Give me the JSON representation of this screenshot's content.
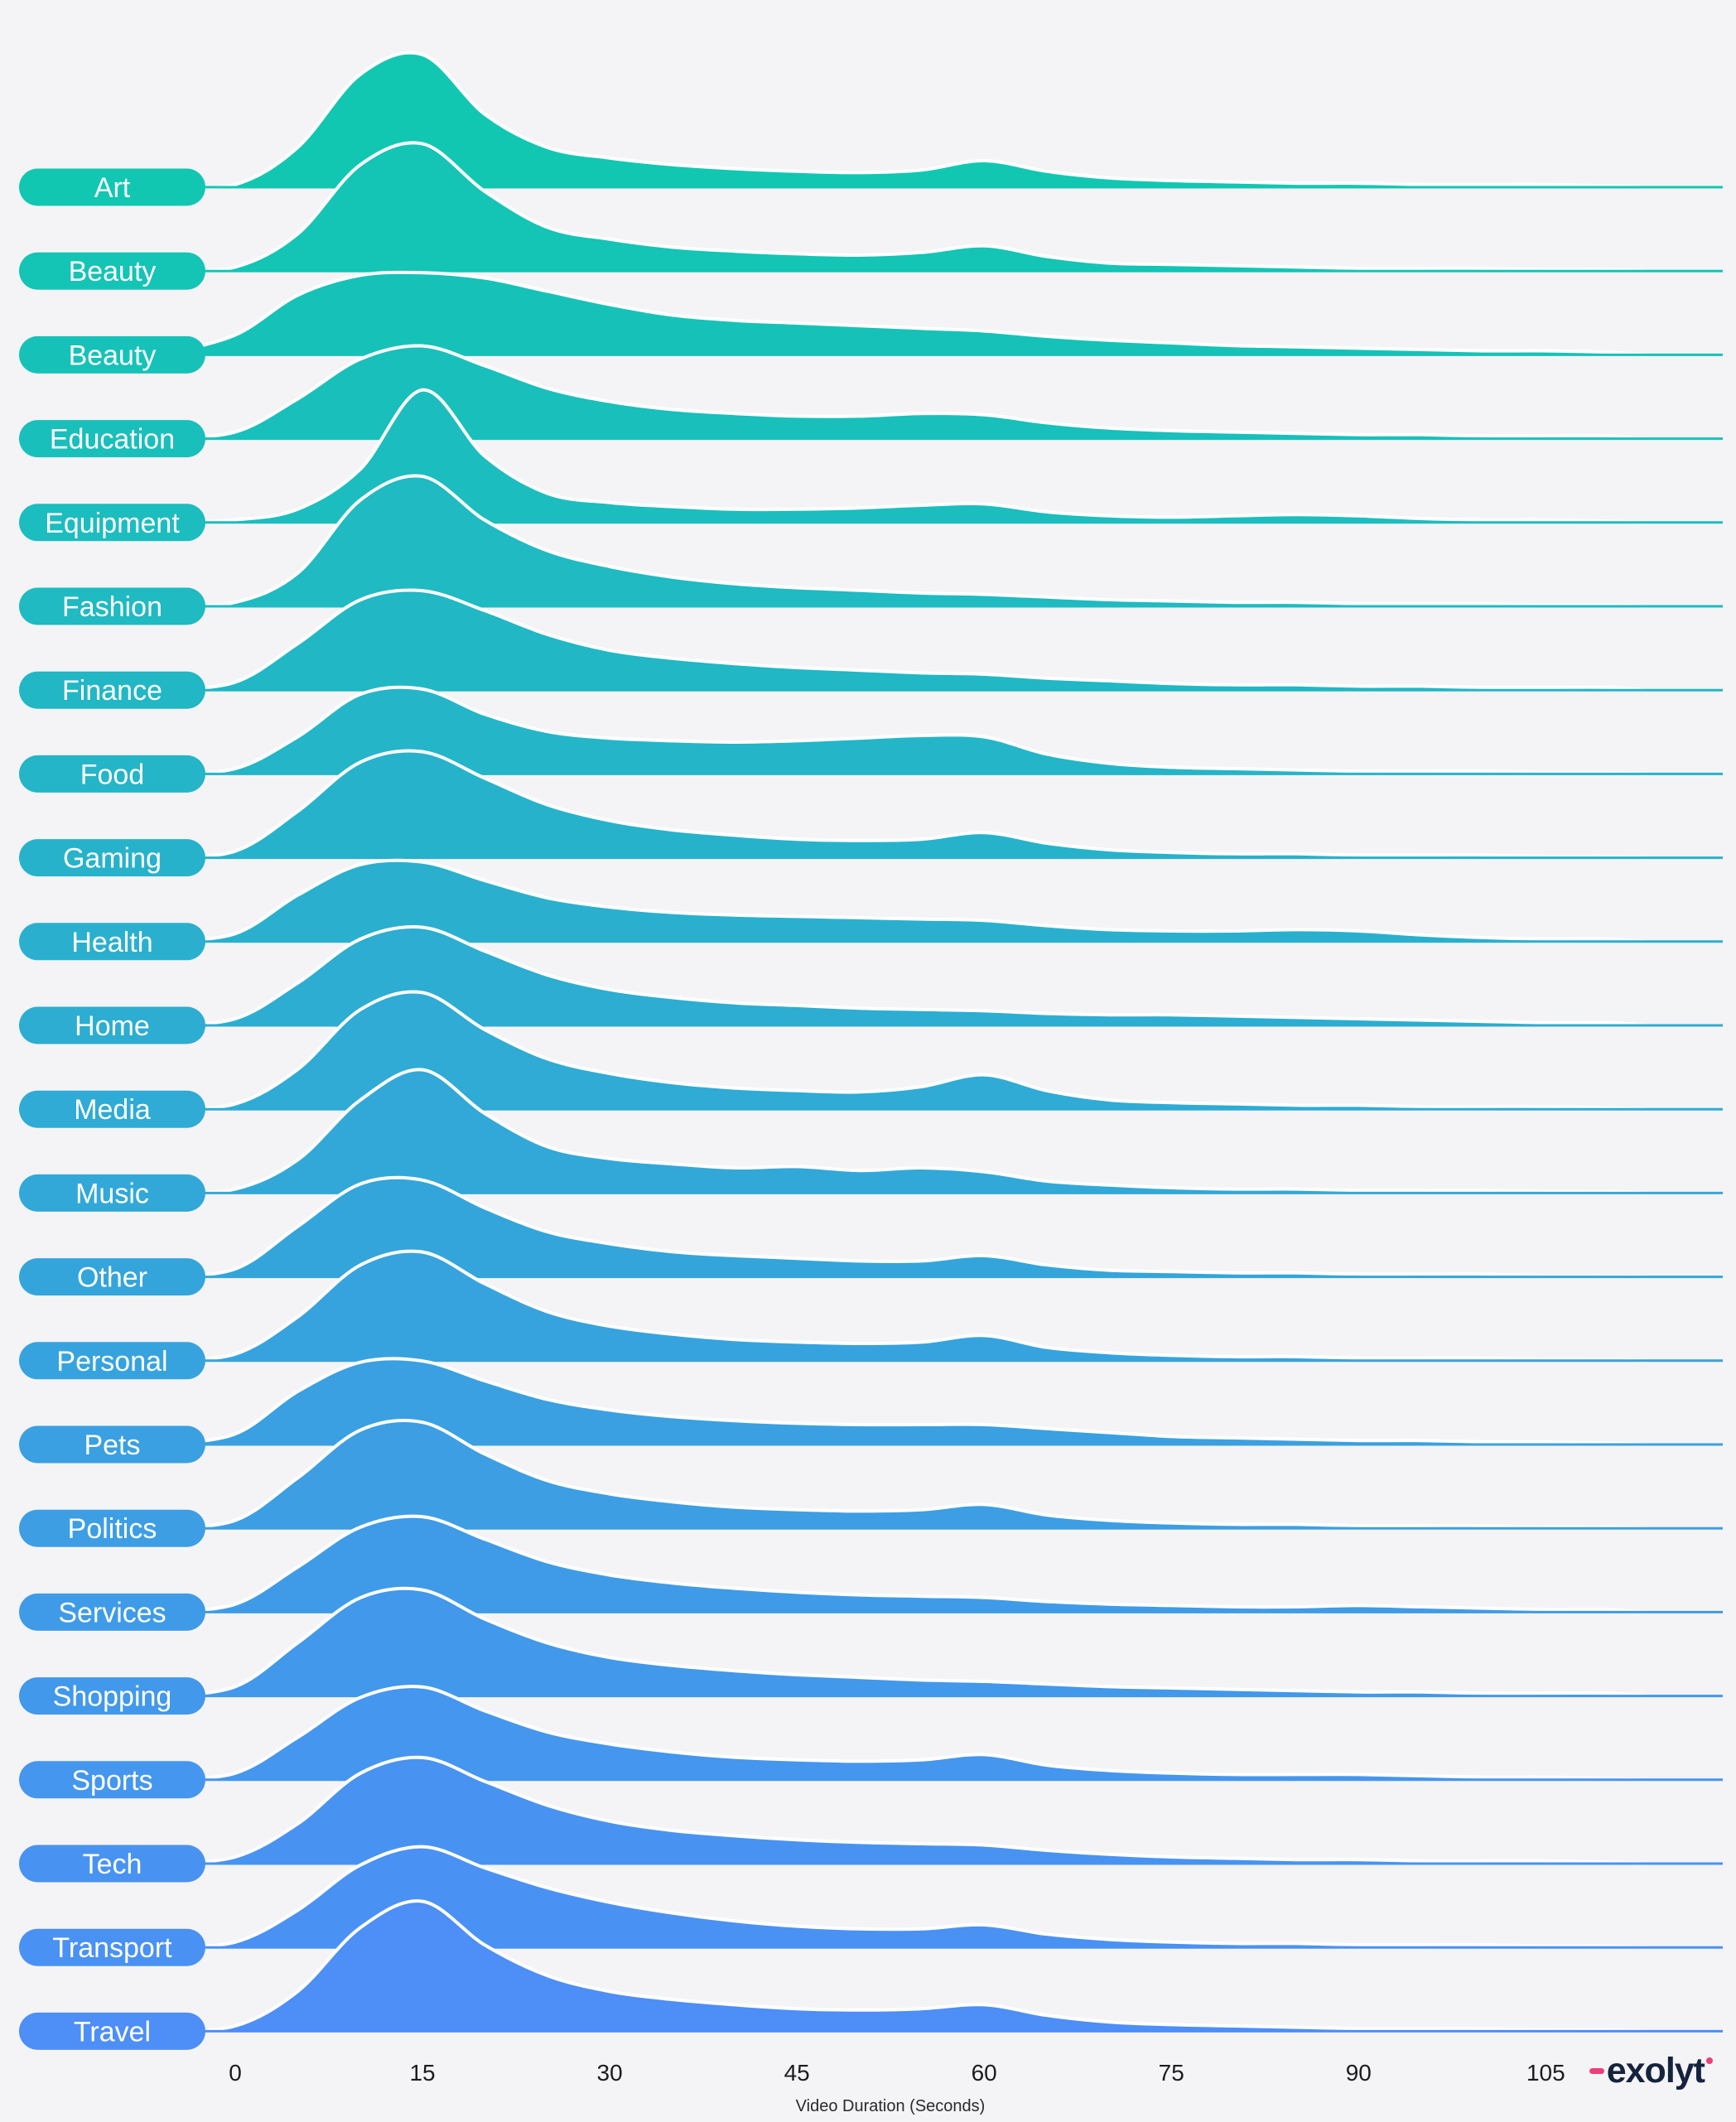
{
  "chart_data": {
    "type": "area",
    "variant": "ridgeline",
    "title": "",
    "xlabel": "Video Duration (Seconds)",
    "ylabel": "",
    "x_ticks": [
      0,
      15,
      30,
      45,
      60,
      75,
      90,
      105
    ],
    "x": [
      0,
      5,
      10,
      15,
      20,
      25,
      30,
      35,
      40,
      45,
      50,
      55,
      60,
      65,
      70,
      75,
      80,
      85,
      90,
      95,
      100,
      105,
      110
    ],
    "series": [
      {
        "label": "Art",
        "values": [
          0.02,
          0.3,
          0.85,
          1.0,
          0.55,
          0.3,
          0.22,
          0.17,
          0.14,
          0.12,
          0.11,
          0.13,
          0.2,
          0.12,
          0.07,
          0.05,
          0.04,
          0.03,
          0.03,
          0.02,
          0.02,
          0.02,
          0.01
        ]
      },
      {
        "label": "Beauty",
        "values": [
          0.03,
          0.28,
          0.8,
          0.96,
          0.6,
          0.33,
          0.24,
          0.18,
          0.15,
          0.13,
          0.12,
          0.14,
          0.19,
          0.11,
          0.06,
          0.05,
          0.04,
          0.03,
          0.02,
          0.02,
          0.02,
          0.01,
          0.01
        ]
      },
      {
        "label": "Beauty",
        "values": [
          0.15,
          0.45,
          0.6,
          0.62,
          0.58,
          0.48,
          0.38,
          0.3,
          0.26,
          0.24,
          0.22,
          0.2,
          0.18,
          0.14,
          0.11,
          0.09,
          0.07,
          0.06,
          0.05,
          0.04,
          0.03,
          0.03,
          0.02
        ]
      },
      {
        "label": "Education",
        "values": [
          0.05,
          0.3,
          0.6,
          0.7,
          0.55,
          0.38,
          0.28,
          0.22,
          0.19,
          0.17,
          0.17,
          0.19,
          0.18,
          0.12,
          0.08,
          0.06,
          0.05,
          0.04,
          0.03,
          0.03,
          0.02,
          0.02,
          0.02
        ]
      },
      {
        "label": "Equipment",
        "values": [
          0.02,
          0.1,
          0.4,
          1.0,
          0.5,
          0.22,
          0.15,
          0.12,
          0.1,
          0.1,
          0.11,
          0.13,
          0.14,
          0.08,
          0.05,
          0.04,
          0.05,
          0.06,
          0.05,
          0.03,
          0.02,
          0.02,
          0.01
        ]
      },
      {
        "label": "Fashion",
        "values": [
          0.03,
          0.25,
          0.8,
          0.98,
          0.65,
          0.42,
          0.3,
          0.22,
          0.17,
          0.14,
          0.12,
          0.1,
          0.09,
          0.07,
          0.05,
          0.04,
          0.03,
          0.03,
          0.02,
          0.02,
          0.02,
          0.01,
          0.01
        ]
      },
      {
        "label": "Finance",
        "values": [
          0.06,
          0.35,
          0.68,
          0.75,
          0.6,
          0.42,
          0.3,
          0.24,
          0.2,
          0.17,
          0.15,
          0.13,
          0.12,
          0.09,
          0.07,
          0.05,
          0.04,
          0.04,
          0.03,
          0.03,
          0.02,
          0.02,
          0.02
        ]
      },
      {
        "label": "Food",
        "values": [
          0.04,
          0.28,
          0.6,
          0.64,
          0.45,
          0.32,
          0.27,
          0.25,
          0.24,
          0.25,
          0.27,
          0.29,
          0.28,
          0.15,
          0.08,
          0.05,
          0.04,
          0.03,
          0.02,
          0.02,
          0.02,
          0.01,
          0.01
        ]
      },
      {
        "label": "Gaming",
        "values": [
          0.05,
          0.35,
          0.72,
          0.8,
          0.6,
          0.4,
          0.28,
          0.21,
          0.17,
          0.14,
          0.13,
          0.14,
          0.19,
          0.11,
          0.06,
          0.04,
          0.03,
          0.03,
          0.02,
          0.02,
          0.02,
          0.01,
          0.01
        ]
      },
      {
        "label": "Health",
        "values": [
          0.06,
          0.35,
          0.58,
          0.6,
          0.46,
          0.33,
          0.26,
          0.22,
          0.2,
          0.19,
          0.18,
          0.17,
          0.16,
          0.12,
          0.09,
          0.08,
          0.08,
          0.09,
          0.08,
          0.05,
          0.03,
          0.02,
          0.02
        ]
      },
      {
        "label": "Home",
        "values": [
          0.05,
          0.32,
          0.65,
          0.74,
          0.56,
          0.38,
          0.27,
          0.21,
          0.17,
          0.15,
          0.13,
          0.12,
          0.11,
          0.09,
          0.08,
          0.08,
          0.07,
          0.06,
          0.05,
          0.04,
          0.03,
          0.02,
          0.02
        ]
      },
      {
        "label": "Media",
        "values": [
          0.04,
          0.3,
          0.75,
          0.88,
          0.6,
          0.38,
          0.27,
          0.2,
          0.16,
          0.14,
          0.13,
          0.17,
          0.26,
          0.14,
          0.07,
          0.05,
          0.04,
          0.03,
          0.03,
          0.02,
          0.02,
          0.02,
          0.01
        ]
      },
      {
        "label": "Music",
        "values": [
          0.03,
          0.25,
          0.7,
          0.93,
          0.6,
          0.35,
          0.26,
          0.22,
          0.19,
          0.2,
          0.17,
          0.19,
          0.16,
          0.09,
          0.06,
          0.04,
          0.03,
          0.03,
          0.02,
          0.02,
          0.02,
          0.01,
          0.01
        ]
      },
      {
        "label": "Other",
        "values": [
          0.06,
          0.38,
          0.7,
          0.73,
          0.52,
          0.34,
          0.25,
          0.19,
          0.16,
          0.14,
          0.12,
          0.12,
          0.16,
          0.09,
          0.05,
          0.04,
          0.03,
          0.03,
          0.02,
          0.02,
          0.02,
          0.01,
          0.01
        ]
      },
      {
        "label": "Personal",
        "values": [
          0.05,
          0.33,
          0.72,
          0.82,
          0.58,
          0.37,
          0.26,
          0.2,
          0.16,
          0.14,
          0.13,
          0.14,
          0.19,
          0.1,
          0.06,
          0.04,
          0.03,
          0.03,
          0.02,
          0.02,
          0.02,
          0.01,
          0.01
        ]
      },
      {
        "label": "Pets",
        "values": [
          0.08,
          0.4,
          0.62,
          0.63,
          0.48,
          0.34,
          0.26,
          0.21,
          0.18,
          0.16,
          0.15,
          0.15,
          0.15,
          0.12,
          0.09,
          0.06,
          0.05,
          0.04,
          0.03,
          0.03,
          0.02,
          0.02,
          0.01
        ]
      },
      {
        "label": "Politics",
        "values": [
          0.06,
          0.38,
          0.74,
          0.8,
          0.56,
          0.36,
          0.26,
          0.2,
          0.16,
          0.14,
          0.13,
          0.14,
          0.18,
          0.1,
          0.06,
          0.04,
          0.03,
          0.03,
          0.02,
          0.02,
          0.02,
          0.01,
          0.01
        ]
      },
      {
        "label": "Services",
        "values": [
          0.06,
          0.34,
          0.64,
          0.72,
          0.55,
          0.38,
          0.28,
          0.22,
          0.18,
          0.15,
          0.13,
          0.12,
          0.11,
          0.08,
          0.06,
          0.05,
          0.04,
          0.04,
          0.05,
          0.04,
          0.03,
          0.02,
          0.02
        ]
      },
      {
        "label": "Shopping",
        "values": [
          0.07,
          0.4,
          0.74,
          0.8,
          0.58,
          0.4,
          0.29,
          0.23,
          0.19,
          0.16,
          0.14,
          0.12,
          0.11,
          0.09,
          0.07,
          0.06,
          0.05,
          0.04,
          0.03,
          0.03,
          0.02,
          0.02,
          0.02
        ]
      },
      {
        "label": "Sports",
        "values": [
          0.05,
          0.32,
          0.62,
          0.7,
          0.52,
          0.36,
          0.27,
          0.21,
          0.17,
          0.15,
          0.14,
          0.15,
          0.19,
          0.11,
          0.07,
          0.05,
          0.04,
          0.04,
          0.04,
          0.03,
          0.02,
          0.02,
          0.01
        ]
      },
      {
        "label": "Tech",
        "values": [
          0.05,
          0.3,
          0.68,
          0.8,
          0.62,
          0.44,
          0.32,
          0.25,
          0.21,
          0.18,
          0.16,
          0.15,
          0.14,
          0.1,
          0.07,
          0.05,
          0.04,
          0.03,
          0.03,
          0.02,
          0.02,
          0.02,
          0.01
        ]
      },
      {
        "label": "Transport",
        "values": [
          0.04,
          0.28,
          0.62,
          0.76,
          0.6,
          0.45,
          0.34,
          0.26,
          0.2,
          0.16,
          0.14,
          0.14,
          0.17,
          0.1,
          0.06,
          0.04,
          0.03,
          0.03,
          0.02,
          0.02,
          0.02,
          0.01,
          0.01
        ]
      },
      {
        "label": "Travel",
        "values": [
          0.04,
          0.3,
          0.78,
          0.98,
          0.65,
          0.42,
          0.3,
          0.24,
          0.2,
          0.17,
          0.16,
          0.17,
          0.2,
          0.12,
          0.07,
          0.05,
          0.04,
          0.03,
          0.02,
          0.02,
          0.02,
          0.01,
          0.01
        ]
      }
    ],
    "legend": "none",
    "grid": "off",
    "color_start": "#11c7b2",
    "color_end": "#4d8ef7",
    "background": "#f4f4f6",
    "separator_color": "#ffffff"
  },
  "branding": {
    "logo_text": "exolyt",
    "accent": "#ef3e7b",
    "text_color": "#14233e"
  }
}
